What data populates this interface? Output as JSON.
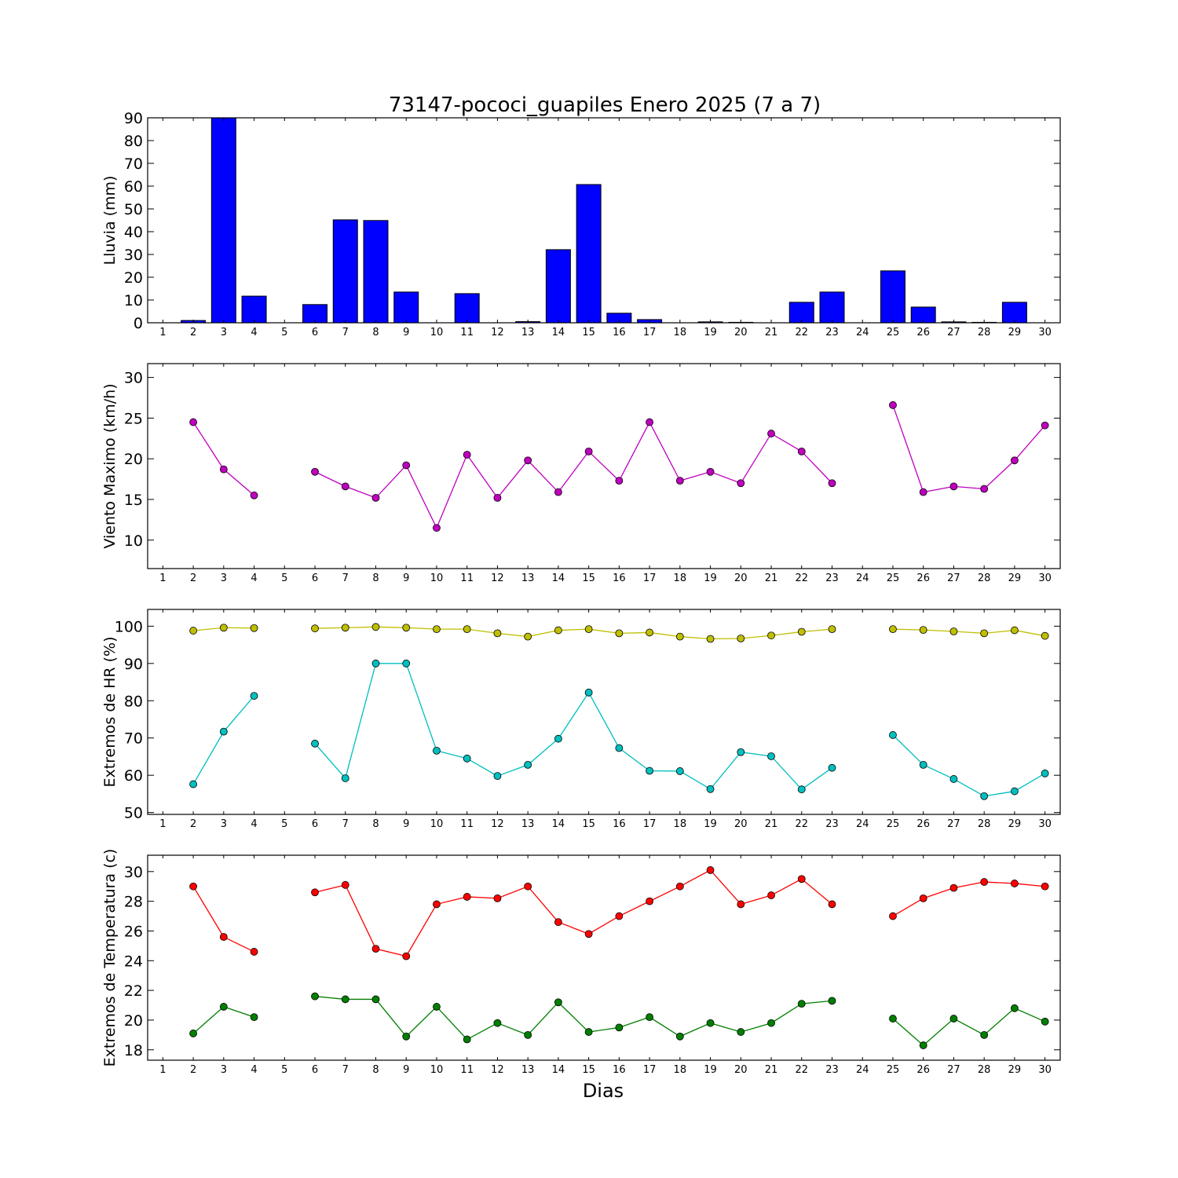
{
  "title": "73147-pococi_guapiles Enero 2025  (7 a 7)",
  "xlabel": "Dias",
  "days": [
    1,
    2,
    3,
    4,
    5,
    6,
    7,
    8,
    9,
    10,
    11,
    12,
    13,
    14,
    15,
    16,
    17,
    18,
    19,
    20,
    21,
    22,
    23,
    24,
    25,
    26,
    27,
    28,
    29,
    30
  ],
  "chart_data": [
    {
      "type": "bar",
      "ylabel": "Lluvia (mm)",
      "ylim": [
        0,
        90
      ],
      "yticks": [
        0,
        10,
        20,
        30,
        40,
        50,
        60,
        70,
        80,
        90
      ],
      "color": "#0000ff",
      "series": [
        {
          "values": [
            0,
            1,
            90,
            11.7,
            0,
            8,
            45.2,
            44.9,
            13.5,
            0,
            12.8,
            0,
            0.5,
            32.1,
            60.7,
            4.2,
            1.4,
            0,
            0.4,
            0.2,
            0,
            9,
            13.5,
            0,
            22.8,
            6.9,
            0.4,
            0.2,
            9,
            0
          ]
        }
      ]
    },
    {
      "type": "line",
      "ylabel": "Viento Maximo (km/h)",
      "ylim": [
        6.5,
        31.7
      ],
      "yticks": [
        10,
        15,
        20,
        25,
        30
      ],
      "series": [
        {
          "color": "#bf00bf",
          "values": [
            null,
            24.5,
            18.7,
            15.5,
            null,
            18.4,
            16.6,
            15.2,
            19.2,
            11.5,
            20.5,
            15.2,
            19.8,
            15.9,
            20.9,
            17.3,
            24.5,
            17.3,
            18.4,
            17,
            23.1,
            20.9,
            17,
            null,
            26.6,
            15.9,
            16.6,
            16.3,
            19.8,
            24.1
          ]
        }
      ]
    },
    {
      "type": "line",
      "ylabel": "Extremos de HR (%)",
      "ylim": [
        49.5,
        104.5
      ],
      "yticks": [
        50,
        60,
        70,
        80,
        90,
        100
      ],
      "series": [
        {
          "color": "#bfbf00",
          "values": [
            null,
            98.8,
            99.6,
            99.5,
            null,
            99.4,
            99.6,
            99.8,
            99.6,
            99.2,
            99.2,
            98.1,
            97.2,
            98.9,
            99.2,
            98.1,
            98.3,
            97.2,
            96.6,
            96.7,
            97.5,
            98.5,
            99.2,
            null,
            99.2,
            99,
            98.6,
            98.1,
            98.9,
            97.4
          ]
        },
        {
          "color": "#00bfbf",
          "values": [
            null,
            57.6,
            71.7,
            81.3,
            null,
            68.5,
            59.2,
            90,
            90,
            66.6,
            64.5,
            59.8,
            62.8,
            69.8,
            82.2,
            67.3,
            61.2,
            61.1,
            56.3,
            66.2,
            65.1,
            56.2,
            62,
            null,
            70.8,
            62.8,
            59,
            54.4,
            55.7,
            60.5
          ]
        }
      ]
    },
    {
      "type": "line",
      "ylabel": "Extremos de Temperatura (c)",
      "ylim": [
        17.3,
        31.1
      ],
      "yticks": [
        18,
        20,
        22,
        24,
        26,
        28,
        30
      ],
      "series": [
        {
          "color": "#ff0000",
          "values": [
            null,
            29,
            25.6,
            24.6,
            null,
            28.6,
            29.1,
            24.8,
            24.3,
            27.8,
            28.3,
            28.2,
            29,
            26.6,
            25.8,
            27,
            28,
            29,
            30.1,
            27.8,
            28.4,
            29.5,
            27.8,
            null,
            27,
            28.2,
            28.9,
            29.3,
            29.2,
            29
          ]
        },
        {
          "color": "#007f00",
          "values": [
            null,
            19.1,
            20.9,
            20.2,
            null,
            21.6,
            21.4,
            21.4,
            18.9,
            20.9,
            18.7,
            19.8,
            19,
            21.2,
            19.2,
            19.5,
            20.2,
            18.9,
            19.8,
            19.2,
            19.8,
            21.1,
            21.3,
            null,
            20.1,
            18.3,
            20.1,
            19,
            20.8,
            19.9
          ]
        }
      ]
    }
  ]
}
